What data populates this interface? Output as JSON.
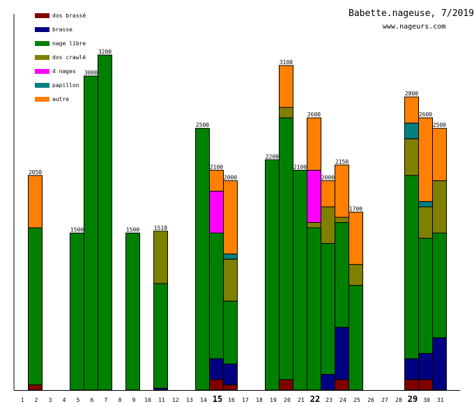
{
  "chart_data": {
    "type": "bar",
    "stacked": true,
    "title": "Babette.nageuse, 7/2019",
    "subtitle": "www.nageurs.com",
    "xlabel": "",
    "ylabel": "",
    "ylim": [
      0,
      3200
    ],
    "legend_position": "top-left",
    "categories": [
      "1",
      "2",
      "3",
      "4",
      "5",
      "6",
      "7",
      "8",
      "9",
      "10",
      "11",
      "12",
      "13",
      "14",
      "15",
      "16",
      "17",
      "18",
      "19",
      "20",
      "21",
      "22",
      "23",
      "24",
      "25",
      "26",
      "27",
      "28",
      "29",
      "30",
      "31"
    ],
    "bold_categories": [
      "15",
      "22",
      "29"
    ],
    "series": [
      {
        "name": "dos brassé",
        "color": "#800000",
        "values": [
          0,
          50,
          0,
          0,
          0,
          0,
          0,
          0,
          0,
          0,
          0,
          0,
          0,
          0,
          100,
          50,
          0,
          0,
          0,
          100,
          0,
          0,
          0,
          100,
          0,
          0,
          0,
          0,
          100,
          100,
          0
        ]
      },
      {
        "name": "brasse",
        "color": "#000080",
        "values": [
          0,
          0,
          0,
          0,
          0,
          0,
          0,
          0,
          0,
          0,
          18,
          0,
          0,
          0,
          200,
          200,
          0,
          0,
          0,
          0,
          0,
          0,
          150,
          500,
          0,
          0,
          0,
          0,
          200,
          250,
          500
        ]
      },
      {
        "name": "nage libre",
        "color": "#008000",
        "values": [
          0,
          1500,
          0,
          0,
          1500,
          3000,
          3200,
          0,
          1500,
          0,
          1000,
          0,
          0,
          2500,
          1200,
          600,
          0,
          0,
          2200,
          2500,
          2100,
          1550,
          1250,
          1000,
          1000,
          0,
          0,
          0,
          1750,
          1100,
          1000
        ]
      },
      {
        "name": "dos crawlé",
        "color": "#808000",
        "values": [
          0,
          0,
          0,
          0,
          0,
          0,
          0,
          0,
          0,
          0,
          500,
          0,
          0,
          0,
          0,
          400,
          0,
          0,
          0,
          100,
          0,
          50,
          350,
          50,
          200,
          0,
          0,
          0,
          350,
          300,
          500
        ]
      },
      {
        "name": "4 nages",
        "color": "#ff00ff",
        "values": [
          0,
          0,
          0,
          0,
          0,
          0,
          0,
          0,
          0,
          0,
          0,
          0,
          0,
          0,
          400,
          0,
          0,
          0,
          0,
          0,
          0,
          500,
          0,
          0,
          0,
          0,
          0,
          0,
          0,
          0,
          0
        ]
      },
      {
        "name": "papillon",
        "color": "#008080",
        "values": [
          0,
          0,
          0,
          0,
          0,
          0,
          0,
          0,
          0,
          0,
          0,
          0,
          0,
          0,
          0,
          50,
          0,
          0,
          0,
          0,
          0,
          0,
          0,
          0,
          0,
          0,
          0,
          0,
          150,
          50,
          0
        ]
      },
      {
        "name": "autre",
        "color": "#ff8000",
        "values": [
          0,
          500,
          0,
          0,
          0,
          0,
          0,
          0,
          0,
          0,
          0,
          0,
          0,
          0,
          200,
          700,
          0,
          0,
          0,
          400,
          0,
          500,
          250,
          500,
          500,
          0,
          0,
          0,
          250,
          800,
          500
        ]
      }
    ],
    "totals": [
      0,
      2050,
      0,
      0,
      1500,
      3000,
      3200,
      0,
      1500,
      0,
      1518,
      0,
      0,
      2500,
      2100,
      2000,
      0,
      0,
      2200,
      3100,
      2100,
      2600,
      2000,
      2150,
      1700,
      0,
      0,
      0,
      2800,
      2600,
      2500
    ]
  }
}
